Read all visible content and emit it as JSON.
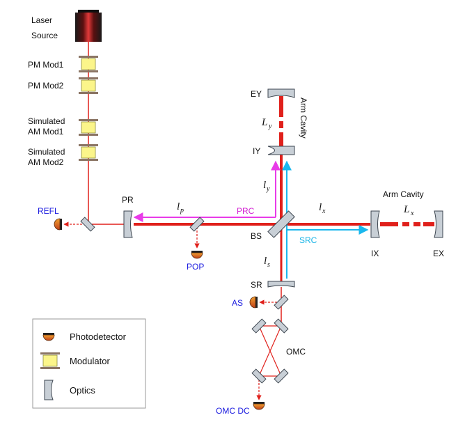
{
  "colors": {
    "beam": "#e0201b",
    "prc": "#e83be8",
    "src": "#1ab8ee",
    "optic_fill": "#c8cfd6",
    "optic_stroke": "#3d4650",
    "modulator_fill": "#fbf58a",
    "modulator_bar": "#8b7565",
    "detector": "#e67820",
    "label_blue": "#1a1adf"
  },
  "source": {
    "line1": "Laser",
    "line2": "Source"
  },
  "modulators": {
    "pm1": "PM Mod1",
    "pm2": "PM Mod2",
    "am1_line1": "Simulated",
    "am1_line2": "AM Mod1",
    "am2_line1": "Simulated",
    "am2_line2": "AM Mod2"
  },
  "optics": {
    "ey": "EY",
    "iy": "IY",
    "pr": "PR",
    "bs": "BS",
    "sr": "SR",
    "ix": "IX",
    "ex": "EX",
    "omc": "OMC"
  },
  "ports": {
    "refl": "REFL",
    "pop": "POP",
    "as": "AS",
    "omc_dc": "OMC DC"
  },
  "cavities": {
    "arm_y": "Arm Cavity",
    "arm_x": "Arm Cavity",
    "prc": "PRC",
    "src": "SRC"
  },
  "lengths": {
    "ly_big": {
      "base": "L",
      "sub": "y"
    },
    "lx_big": {
      "base": "L",
      "sub": "x"
    },
    "ly": {
      "base": "l",
      "sub": "y"
    },
    "lx": {
      "base": "l",
      "sub": "x"
    },
    "lp": {
      "base": "l",
      "sub": "p"
    },
    "ls": {
      "base": "l",
      "sub": "s"
    }
  },
  "legend": {
    "photodetector": "Photodetector",
    "modulator": "Modulator",
    "optics": "Optics"
  }
}
